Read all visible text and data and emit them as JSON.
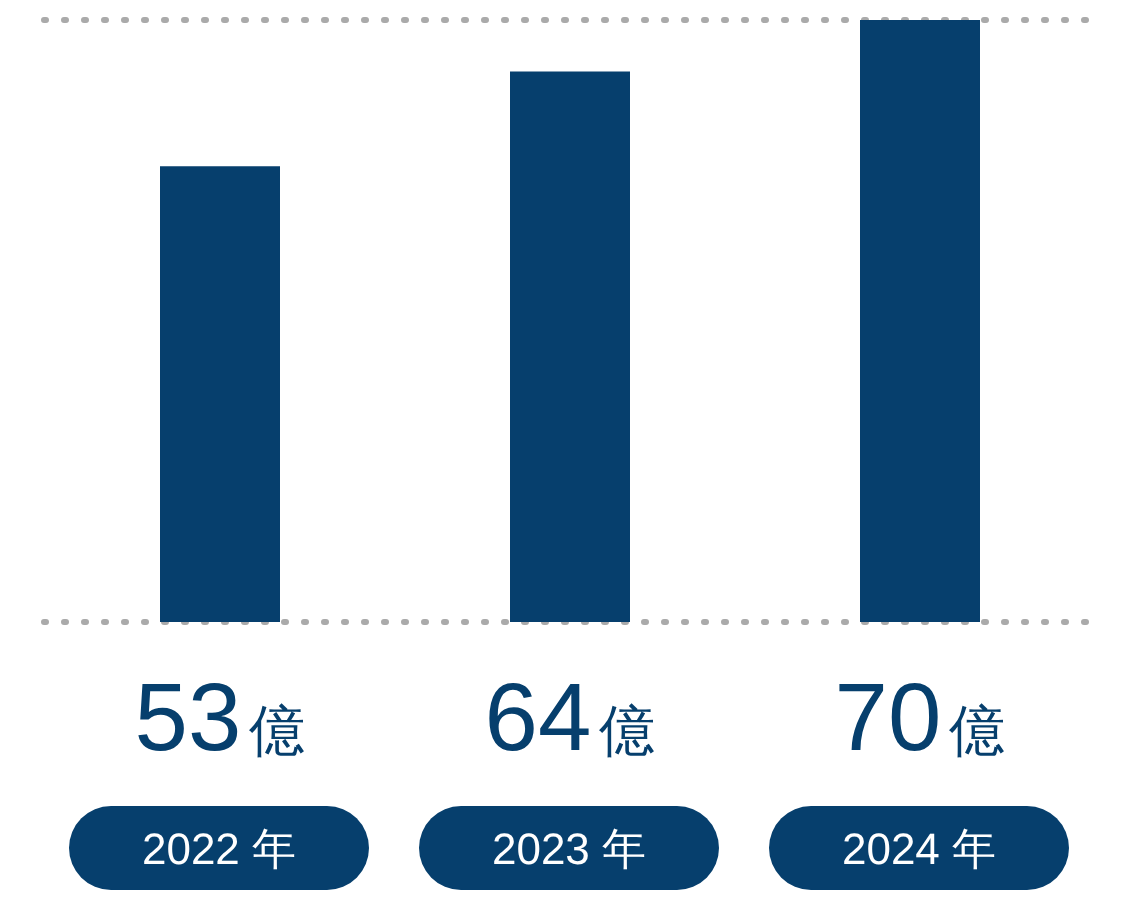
{
  "chart_data": {
    "type": "bar",
    "categories": [
      "2022 年",
      "2023 年",
      "2024 年"
    ],
    "values": [
      53,
      64,
      70
    ],
    "color": "#063f6d",
    "value_labels": [
      "53億",
      "64億",
      "70億"
    ],
    "ylim": [
      0,
      70
    ],
    "grid": "y",
    "tick_labels": "x"
  }
}
